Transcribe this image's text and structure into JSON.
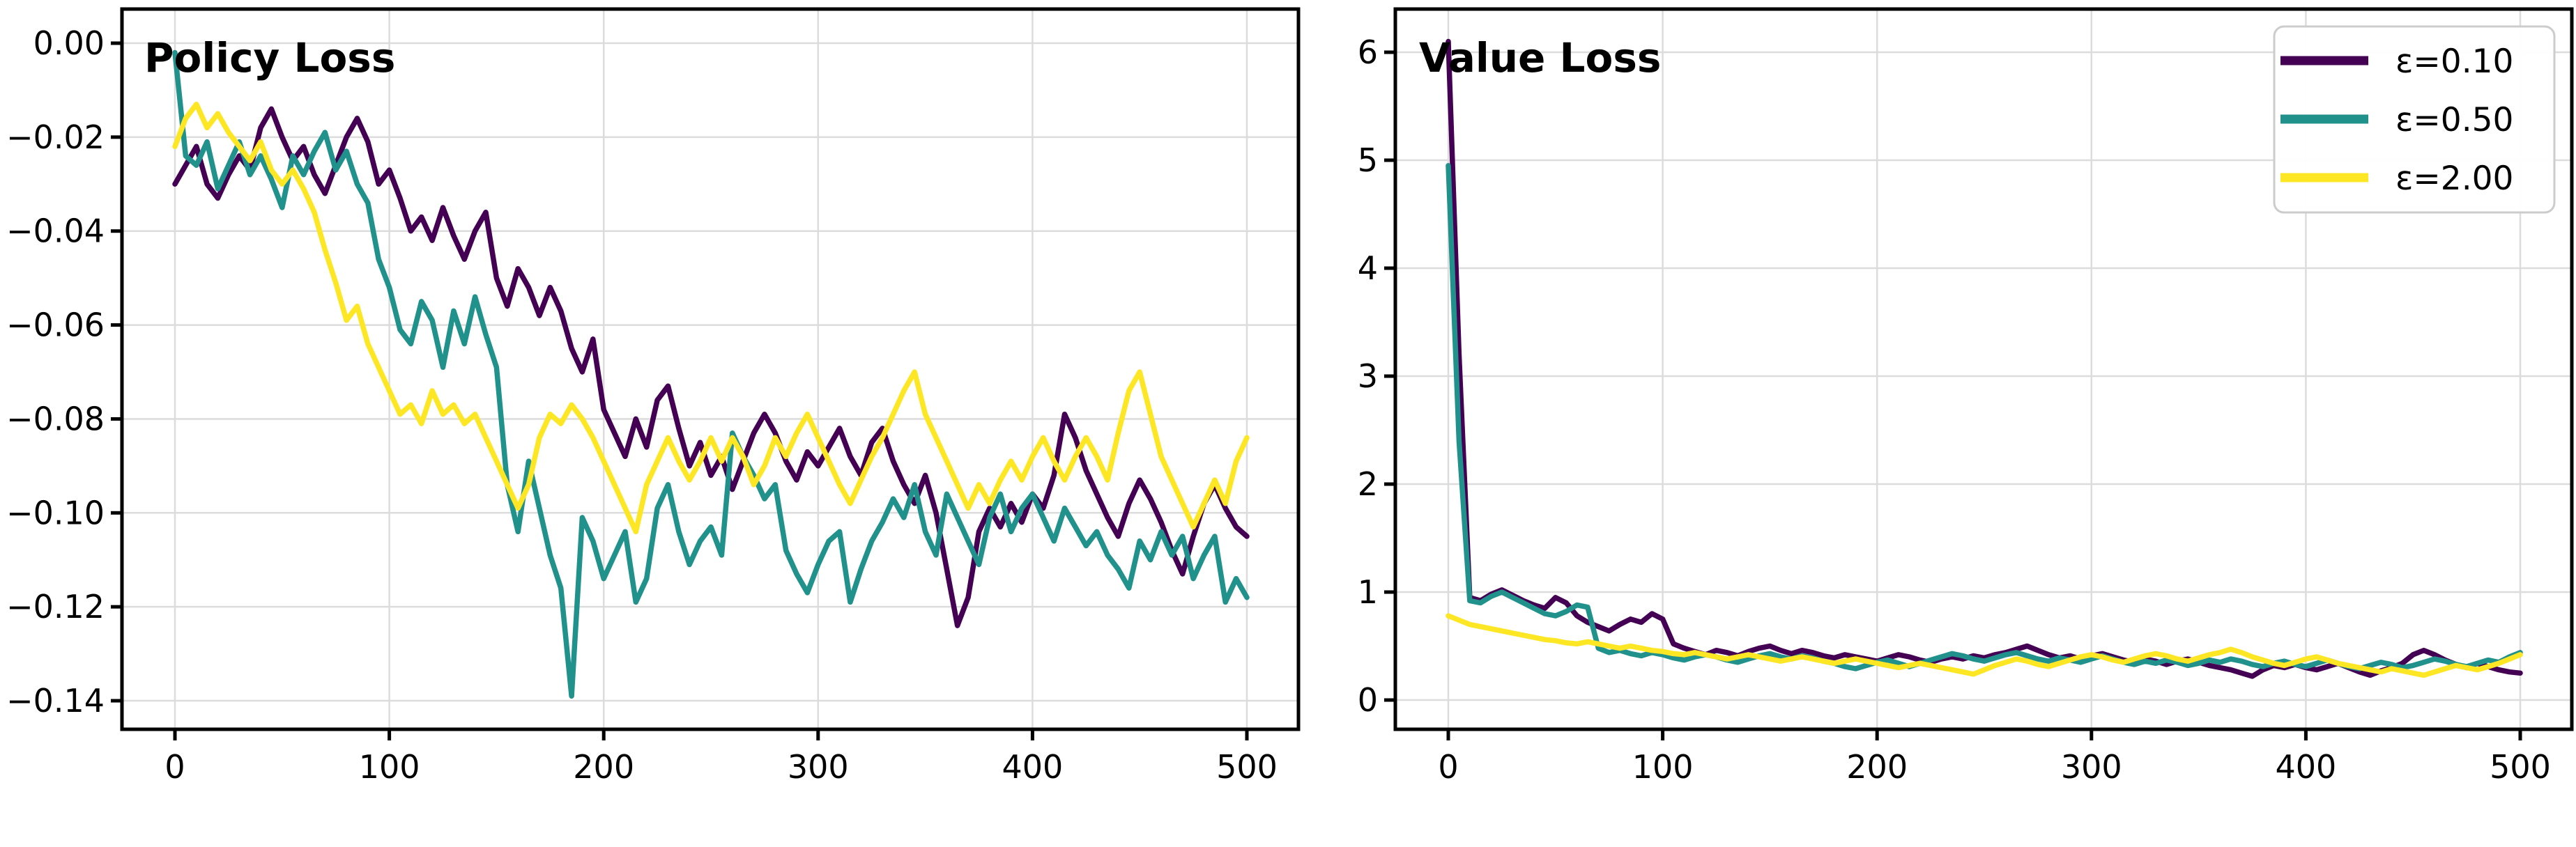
{
  "figure": {
    "background_color": "#ffffff"
  },
  "chart_data": [
    {
      "type": "line",
      "title": "Policy Loss",
      "xlabel": "",
      "ylabel": "",
      "grid": true,
      "xlim": [
        -25,
        512
      ],
      "ylim": [
        -0.146,
        0.007
      ],
      "x_tick_values": [
        0,
        100,
        200,
        300,
        400,
        500
      ],
      "x_tick_labels": [
        "0",
        "100",
        "200",
        "300",
        "400",
        "500"
      ],
      "y_tick_values": [
        0.0,
        -0.02,
        -0.04,
        -0.06,
        -0.08,
        -0.1,
        -0.12,
        -0.14
      ],
      "y_tick_labels": [
        "0.00",
        "−0.02",
        "−0.04",
        "−0.06",
        "−0.08",
        "−0.10",
        "−0.12",
        "−0.14"
      ],
      "x": {
        "start": 0,
        "step": 5,
        "count": 101
      },
      "series": [
        {
          "name": "ε=0.10",
          "color": "#440154",
          "values": [
            -0.03,
            -0.026,
            -0.022,
            -0.03,
            -0.033,
            -0.028,
            -0.024,
            -0.027,
            -0.018,
            -0.014,
            -0.02,
            -0.025,
            -0.022,
            -0.028,
            -0.032,
            -0.026,
            -0.02,
            -0.016,
            -0.021,
            -0.03,
            -0.027,
            -0.033,
            -0.04,
            -0.037,
            -0.042,
            -0.035,
            -0.041,
            -0.046,
            -0.04,
            -0.036,
            -0.05,
            -0.056,
            -0.048,
            -0.052,
            -0.058,
            -0.052,
            -0.057,
            -0.065,
            -0.07,
            -0.063,
            -0.078,
            -0.083,
            -0.088,
            -0.08,
            -0.086,
            -0.076,
            -0.073,
            -0.082,
            -0.09,
            -0.085,
            -0.092,
            -0.088,
            -0.095,
            -0.089,
            -0.083,
            -0.079,
            -0.083,
            -0.089,
            -0.093,
            -0.087,
            -0.09,
            -0.086,
            -0.082,
            -0.088,
            -0.092,
            -0.085,
            -0.082,
            -0.089,
            -0.094,
            -0.098,
            -0.092,
            -0.1,
            -0.112,
            -0.124,
            -0.118,
            -0.104,
            -0.099,
            -0.103,
            -0.098,
            -0.102,
            -0.096,
            -0.099,
            -0.092,
            -0.079,
            -0.084,
            -0.091,
            -0.096,
            -0.101,
            -0.105,
            -0.098,
            -0.093,
            -0.097,
            -0.102,
            -0.108,
            -0.113,
            -0.105,
            -0.098,
            -0.094,
            -0.099,
            -0.103,
            -0.105
          ]
        },
        {
          "name": "ε=0.50",
          "color": "#21918c",
          "values": [
            -0.002,
            -0.024,
            -0.026,
            -0.021,
            -0.031,
            -0.026,
            -0.021,
            -0.028,
            -0.024,
            -0.029,
            -0.035,
            -0.024,
            -0.028,
            -0.023,
            -0.019,
            -0.027,
            -0.023,
            -0.03,
            -0.034,
            -0.046,
            -0.052,
            -0.061,
            -0.064,
            -0.055,
            -0.059,
            -0.069,
            -0.057,
            -0.064,
            -0.054,
            -0.062,
            -0.069,
            -0.094,
            -0.104,
            -0.089,
            -0.099,
            -0.109,
            -0.116,
            -0.139,
            -0.101,
            -0.106,
            -0.114,
            -0.109,
            -0.104,
            -0.119,
            -0.114,
            -0.099,
            -0.094,
            -0.104,
            -0.111,
            -0.106,
            -0.103,
            -0.109,
            -0.083,
            -0.088,
            -0.092,
            -0.097,
            -0.094,
            -0.108,
            -0.113,
            -0.117,
            -0.111,
            -0.106,
            -0.104,
            -0.119,
            -0.112,
            -0.106,
            -0.102,
            -0.097,
            -0.101,
            -0.094,
            -0.104,
            -0.109,
            -0.096,
            -0.101,
            -0.106,
            -0.111,
            -0.101,
            -0.096,
            -0.104,
            -0.099,
            -0.096,
            -0.101,
            -0.106,
            -0.099,
            -0.103,
            -0.107,
            -0.104,
            -0.109,
            -0.112,
            -0.116,
            -0.106,
            -0.11,
            -0.104,
            -0.109,
            -0.105,
            -0.114,
            -0.109,
            -0.105,
            -0.119,
            -0.114,
            -0.118
          ]
        },
        {
          "name": "ε=2.00",
          "color": "#fde725",
          "values": [
            -0.022,
            -0.016,
            -0.013,
            -0.018,
            -0.015,
            -0.019,
            -0.022,
            -0.025,
            -0.021,
            -0.027,
            -0.03,
            -0.027,
            -0.031,
            -0.036,
            -0.044,
            -0.051,
            -0.059,
            -0.056,
            -0.064,
            -0.069,
            -0.074,
            -0.079,
            -0.077,
            -0.081,
            -0.074,
            -0.079,
            -0.077,
            -0.081,
            -0.079,
            -0.084,
            -0.089,
            -0.094,
            -0.099,
            -0.094,
            -0.084,
            -0.079,
            -0.081,
            -0.077,
            -0.08,
            -0.084,
            -0.089,
            -0.094,
            -0.099,
            -0.104,
            -0.094,
            -0.089,
            -0.084,
            -0.089,
            -0.093,
            -0.089,
            -0.084,
            -0.089,
            -0.084,
            -0.088,
            -0.094,
            -0.09,
            -0.084,
            -0.088,
            -0.083,
            -0.079,
            -0.084,
            -0.089,
            -0.094,
            -0.098,
            -0.093,
            -0.088,
            -0.084,
            -0.079,
            -0.074,
            -0.07,
            -0.079,
            -0.084,
            -0.089,
            -0.094,
            -0.099,
            -0.094,
            -0.098,
            -0.093,
            -0.089,
            -0.093,
            -0.088,
            -0.084,
            -0.089,
            -0.093,
            -0.088,
            -0.084,
            -0.088,
            -0.093,
            -0.083,
            -0.074,
            -0.07,
            -0.079,
            -0.088,
            -0.093,
            -0.098,
            -0.103,
            -0.098,
            -0.093,
            -0.098,
            -0.089,
            -0.084
          ]
        }
      ]
    },
    {
      "type": "line",
      "title": "Value Loss",
      "xlabel": "",
      "ylabel": "",
      "grid": true,
      "xlim": [
        -25,
        512
      ],
      "ylim": [
        -0.27,
        6.4
      ],
      "x_tick_values": [
        0,
        100,
        200,
        300,
        400,
        500
      ],
      "x_tick_labels": [
        "0",
        "100",
        "200",
        "300",
        "400",
        "500"
      ],
      "y_tick_values": [
        0,
        1,
        2,
        3,
        4,
        5,
        6
      ],
      "y_tick_labels": [
        "0",
        "1",
        "2",
        "3",
        "4",
        "5",
        "6"
      ],
      "x": {
        "start": 0,
        "step": 5,
        "count": 101
      },
      "legend": {
        "position": "upper right",
        "entries": [
          {
            "label": "ε=0.10",
            "color": "#440154"
          },
          {
            "label": "ε=0.50",
            "color": "#21918c"
          },
          {
            "label": "ε=2.00",
            "color": "#fde725"
          }
        ]
      },
      "series": [
        {
          "name": "ε=0.10",
          "color": "#440154",
          "values": [
            6.1,
            3.2,
            0.95,
            0.92,
            0.98,
            1.02,
            0.97,
            0.92,
            0.88,
            0.85,
            0.95,
            0.9,
            0.78,
            0.72,
            0.68,
            0.64,
            0.7,
            0.75,
            0.72,
            0.8,
            0.75,
            0.52,
            0.48,
            0.45,
            0.42,
            0.46,
            0.44,
            0.41,
            0.45,
            0.48,
            0.5,
            0.46,
            0.43,
            0.46,
            0.44,
            0.41,
            0.39,
            0.42,
            0.4,
            0.38,
            0.36,
            0.39,
            0.42,
            0.4,
            0.37,
            0.35,
            0.38,
            0.4,
            0.38,
            0.41,
            0.39,
            0.42,
            0.44,
            0.47,
            0.5,
            0.46,
            0.42,
            0.39,
            0.41,
            0.38,
            0.41,
            0.43,
            0.4,
            0.37,
            0.35,
            0.38,
            0.36,
            0.33,
            0.36,
            0.38,
            0.35,
            0.32,
            0.3,
            0.28,
            0.25,
            0.22,
            0.28,
            0.32,
            0.3,
            0.33,
            0.3,
            0.28,
            0.31,
            0.34,
            0.3,
            0.26,
            0.23,
            0.27,
            0.3,
            0.34,
            0.42,
            0.46,
            0.42,
            0.37,
            0.33,
            0.3,
            0.34,
            0.31,
            0.28,
            0.26,
            0.25
          ]
        },
        {
          "name": "ε=0.50",
          "color": "#21918c",
          "values": [
            4.95,
            2.4,
            0.92,
            0.9,
            0.96,
            1.0,
            0.95,
            0.9,
            0.85,
            0.8,
            0.78,
            0.82,
            0.88,
            0.86,
            0.48,
            0.44,
            0.46,
            0.43,
            0.41,
            0.44,
            0.42,
            0.39,
            0.37,
            0.4,
            0.42,
            0.4,
            0.37,
            0.35,
            0.38,
            0.41,
            0.43,
            0.4,
            0.38,
            0.41,
            0.39,
            0.36,
            0.34,
            0.31,
            0.29,
            0.32,
            0.35,
            0.37,
            0.34,
            0.31,
            0.34,
            0.37,
            0.4,
            0.43,
            0.41,
            0.38,
            0.36,
            0.39,
            0.42,
            0.44,
            0.41,
            0.38,
            0.36,
            0.39,
            0.37,
            0.35,
            0.38,
            0.41,
            0.38,
            0.35,
            0.33,
            0.36,
            0.34,
            0.37,
            0.35,
            0.32,
            0.34,
            0.37,
            0.35,
            0.38,
            0.36,
            0.33,
            0.31,
            0.34,
            0.36,
            0.33,
            0.31,
            0.34,
            0.37,
            0.34,
            0.31,
            0.29,
            0.32,
            0.35,
            0.33,
            0.3,
            0.32,
            0.35,
            0.38,
            0.36,
            0.33,
            0.31,
            0.34,
            0.37,
            0.35,
            0.4,
            0.44
          ]
        },
        {
          "name": "ε=2.00",
          "color": "#fde725",
          "values": [
            0.78,
            0.74,
            0.7,
            0.68,
            0.66,
            0.64,
            0.62,
            0.6,
            0.58,
            0.56,
            0.55,
            0.53,
            0.52,
            0.54,
            0.52,
            0.5,
            0.48,
            0.5,
            0.48,
            0.46,
            0.45,
            0.43,
            0.42,
            0.44,
            0.42,
            0.4,
            0.38,
            0.4,
            0.42,
            0.4,
            0.38,
            0.36,
            0.38,
            0.4,
            0.38,
            0.36,
            0.34,
            0.36,
            0.38,
            0.36,
            0.34,
            0.32,
            0.3,
            0.32,
            0.34,
            0.32,
            0.3,
            0.28,
            0.26,
            0.24,
            0.28,
            0.32,
            0.35,
            0.38,
            0.36,
            0.33,
            0.31,
            0.34,
            0.37,
            0.4,
            0.42,
            0.4,
            0.37,
            0.35,
            0.38,
            0.41,
            0.43,
            0.41,
            0.38,
            0.36,
            0.39,
            0.42,
            0.44,
            0.47,
            0.44,
            0.4,
            0.37,
            0.34,
            0.32,
            0.35,
            0.38,
            0.4,
            0.37,
            0.34,
            0.32,
            0.3,
            0.28,
            0.26,
            0.29,
            0.27,
            0.25,
            0.23,
            0.26,
            0.29,
            0.32,
            0.3,
            0.28,
            0.31,
            0.34,
            0.38,
            0.42
          ]
        }
      ]
    }
  ]
}
